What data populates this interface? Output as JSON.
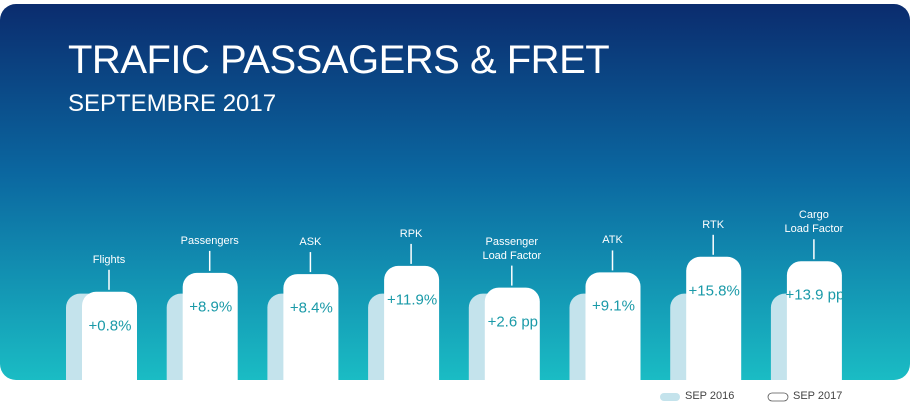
{
  "chart_data": {
    "type": "bar",
    "title": "TRAFIC PASSAGERS & FRET",
    "subtitle": "SEPTEMBRE 2017",
    "categories": [
      "Flights",
      "Passengers",
      "ASK",
      "RPK",
      "Passenger\nLoad Factor",
      "ATK",
      "RTK",
      "Cargo\nLoad Factor"
    ],
    "series": [
      {
        "name": "SEP 2016",
        "color": "#c4e3ec",
        "values": [
          0,
          0,
          0,
          0,
          0,
          0,
          0,
          0
        ]
      },
      {
        "name": "SEP 2017",
        "color": "#ffffff",
        "values": [
          0.8,
          8.9,
          8.4,
          11.9,
          2.6,
          9.1,
          15.8,
          13.9
        ],
        "value_labels": [
          "+0.8%",
          "+8.9%",
          "+8.4%",
          "+11.9%",
          "+2.6 pp",
          "+9.1%",
          "+15.8%",
          "+13.9 pp"
        ]
      }
    ],
    "ylim": [
      -37,
      20
    ]
  }
}
